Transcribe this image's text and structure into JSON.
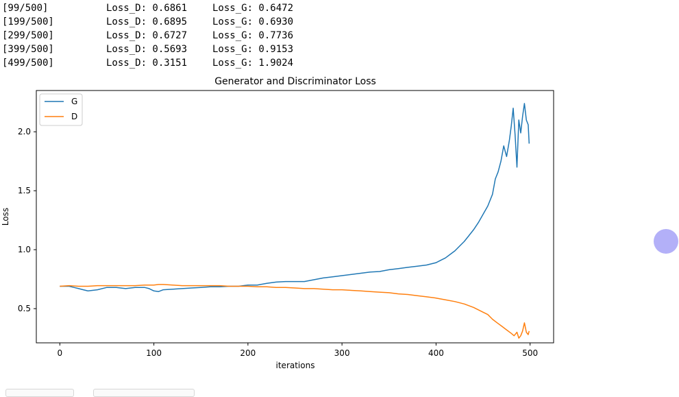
{
  "log": [
    {
      "step": "[99/500]",
      "loss_d": "Loss_D: 0.6861",
      "loss_g": "Loss_G: 0.6472"
    },
    {
      "step": "[199/500]",
      "loss_d": "Loss_D: 0.6895",
      "loss_g": "Loss_G: 0.6930"
    },
    {
      "step": "[299/500]",
      "loss_d": "Loss_D: 0.6727",
      "loss_g": "Loss_G: 0.7736"
    },
    {
      "step": "[399/500]",
      "loss_d": "Loss_D: 0.5693",
      "loss_g": "Loss_G: 0.9153"
    },
    {
      "step": "[499/500]",
      "loss_d": "Loss_D: 0.3151",
      "loss_g": "Loss_G: 1.9024"
    }
  ],
  "chart_data": {
    "type": "line",
    "title": "Generator and Discriminator Loss",
    "xlabel": "iterations",
    "ylabel": "Loss",
    "xlim": [
      -25,
      525
    ],
    "ylim": [
      0.21,
      2.35
    ],
    "xticks": [
      "0",
      "100",
      "200",
      "300",
      "400",
      "500"
    ],
    "yticks": [
      "0.5",
      "1.0",
      "1.5",
      "2.0"
    ],
    "grid": false,
    "legend_position": "top-left",
    "series": [
      {
        "name": "G",
        "color": "#1f77b4",
        "x": [
          0,
          10,
          15,
          20,
          25,
          30,
          40,
          50,
          60,
          70,
          80,
          90,
          95,
          100,
          105,
          110,
          120,
          130,
          140,
          150,
          160,
          170,
          180,
          190,
          200,
          210,
          220,
          230,
          240,
          250,
          260,
          270,
          280,
          290,
          300,
          310,
          320,
          330,
          340,
          350,
          360,
          370,
          380,
          390,
          400,
          405,
          410,
          415,
          420,
          425,
          430,
          435,
          440,
          445,
          450,
          455,
          460,
          463,
          466,
          469,
          472,
          475,
          478,
          480,
          482,
          484,
          486,
          488,
          490,
          492,
          494,
          496,
          498,
          499
        ],
        "y": [
          0.69,
          0.69,
          0.68,
          0.67,
          0.66,
          0.65,
          0.66,
          0.68,
          0.68,
          0.67,
          0.68,
          0.68,
          0.67,
          0.65,
          0.645,
          0.66,
          0.665,
          0.67,
          0.675,
          0.68,
          0.685,
          0.685,
          0.69,
          0.69,
          0.7,
          0.7,
          0.715,
          0.725,
          0.73,
          0.73,
          0.73,
          0.745,
          0.76,
          0.77,
          0.78,
          0.79,
          0.8,
          0.81,
          0.815,
          0.83,
          0.84,
          0.85,
          0.86,
          0.87,
          0.89,
          0.91,
          0.93,
          0.96,
          0.99,
          1.03,
          1.07,
          1.12,
          1.17,
          1.23,
          1.3,
          1.37,
          1.47,
          1.6,
          1.66,
          1.75,
          1.88,
          1.79,
          1.93,
          2.05,
          2.2,
          1.98,
          1.7,
          2.1,
          1.99,
          2.13,
          2.24,
          2.1,
          2.06,
          1.9
        ]
      },
      {
        "name": "D",
        "color": "#ff7f0e",
        "x": [
          0,
          10,
          20,
          30,
          40,
          50,
          60,
          70,
          80,
          90,
          100,
          105,
          110,
          120,
          130,
          140,
          150,
          160,
          170,
          180,
          190,
          200,
          210,
          220,
          230,
          240,
          250,
          260,
          270,
          280,
          290,
          300,
          310,
          320,
          330,
          340,
          350,
          360,
          370,
          380,
          390,
          400,
          410,
          420,
          430,
          440,
          450,
          455,
          460,
          465,
          470,
          475,
          480,
          483,
          486,
          488,
          490,
          492,
          494,
          496,
          498,
          499
        ],
        "y": [
          0.69,
          0.695,
          0.69,
          0.69,
          0.695,
          0.695,
          0.695,
          0.695,
          0.695,
          0.7,
          0.7,
          0.705,
          0.705,
          0.7,
          0.695,
          0.695,
          0.695,
          0.695,
          0.695,
          0.69,
          0.69,
          0.69,
          0.685,
          0.685,
          0.68,
          0.68,
          0.675,
          0.67,
          0.67,
          0.665,
          0.66,
          0.66,
          0.655,
          0.65,
          0.645,
          0.64,
          0.635,
          0.625,
          0.62,
          0.61,
          0.6,
          0.59,
          0.575,
          0.56,
          0.54,
          0.51,
          0.47,
          0.45,
          0.41,
          0.38,
          0.35,
          0.32,
          0.29,
          0.27,
          0.3,
          0.25,
          0.27,
          0.31,
          0.38,
          0.3,
          0.28,
          0.31
        ]
      }
    ]
  }
}
